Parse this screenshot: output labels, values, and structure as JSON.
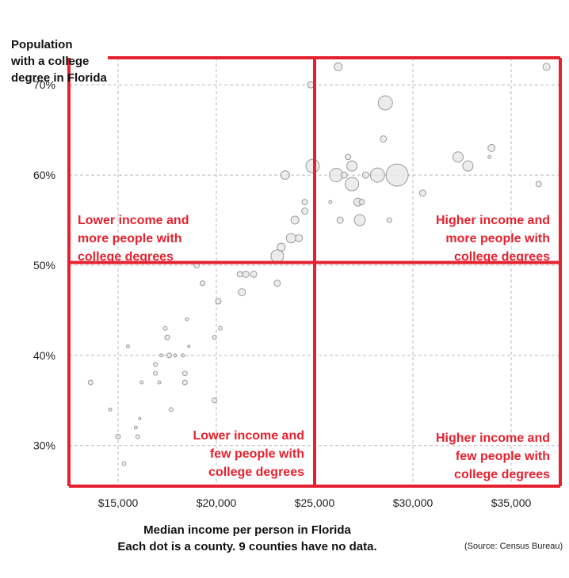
{
  "chart_data": {
    "type": "scatter",
    "title": "",
    "ylabel_lines": [
      "Population",
      "with a college",
      "degree in Florida"
    ],
    "xlabel_lines": [
      "Median income per person in Florida",
      "Each dot is a county. 9 counties have no data."
    ],
    "source": "(Source: Census Bureau)",
    "xlim": [
      12500,
      37500
    ],
    "ylim": [
      25.5,
      73
    ],
    "x_ticks": [
      15000,
      20000,
      25000,
      30000,
      35000
    ],
    "x_tick_labels": [
      "$15,000",
      "$20,000",
      "$25,000",
      "$30,000",
      "$35,000"
    ],
    "y_ticks": [
      30,
      40,
      50,
      60,
      70
    ],
    "y_tick_labels": [
      "30%",
      "40%",
      "50%",
      "60%",
      "70%"
    ],
    "grid": true,
    "dividers": {
      "x": 25000,
      "y": 50.3
    },
    "quadrant_labels": {
      "top_left": [
        "Lower income and",
        "more people with",
        "college degrees"
      ],
      "top_right": [
        "Higher income and",
        "more people with",
        "college degrees"
      ],
      "bottom_left": [
        "Lower income and",
        "few people with",
        "college degrees"
      ],
      "bottom_right": [
        "Higher income and",
        "few people with",
        "college degrees"
      ]
    },
    "points": [
      {
        "x": 13600,
        "y": 37,
        "s": 3
      },
      {
        "x": 14600,
        "y": 34,
        "s": 2
      },
      {
        "x": 15000,
        "y": 31,
        "s": 3
      },
      {
        "x": 15300,
        "y": 28,
        "s": 2.5
      },
      {
        "x": 15500,
        "y": 41,
        "s": 2
      },
      {
        "x": 15900,
        "y": 32,
        "s": 2
      },
      {
        "x": 16000,
        "y": 31,
        "s": 2.5
      },
      {
        "x": 16100,
        "y": 33,
        "s": 1.5
      },
      {
        "x": 16200,
        "y": 37,
        "s": 2
      },
      {
        "x": 16900,
        "y": 38,
        "s": 2.5
      },
      {
        "x": 16900,
        "y": 39,
        "s": 2.5
      },
      {
        "x": 17100,
        "y": 37,
        "s": 2
      },
      {
        "x": 17200,
        "y": 40,
        "s": 2
      },
      {
        "x": 17400,
        "y": 43,
        "s": 2.5
      },
      {
        "x": 17500,
        "y": 42,
        "s": 3
      },
      {
        "x": 17600,
        "y": 40,
        "s": 3
      },
      {
        "x": 17700,
        "y": 34,
        "s": 2.5
      },
      {
        "x": 17900,
        "y": 40,
        "s": 2
      },
      {
        "x": 18300,
        "y": 40,
        "s": 2
      },
      {
        "x": 18400,
        "y": 38,
        "s": 3
      },
      {
        "x": 18400,
        "y": 37,
        "s": 3
      },
      {
        "x": 18500,
        "y": 44,
        "s": 2
      },
      {
        "x": 18600,
        "y": 41,
        "s": 1.5
      },
      {
        "x": 19000,
        "y": 50,
        "s": 3.5
      },
      {
        "x": 19300,
        "y": 48,
        "s": 3
      },
      {
        "x": 19900,
        "y": 42,
        "s": 2.5
      },
      {
        "x": 19900,
        "y": 35,
        "s": 3
      },
      {
        "x": 20100,
        "y": 46,
        "s": 3.5
      },
      {
        "x": 20200,
        "y": 43,
        "s": 2.5
      },
      {
        "x": 21300,
        "y": 47,
        "s": 4.5
      },
      {
        "x": 21200,
        "y": 49,
        "s": 3.5
      },
      {
        "x": 21500,
        "y": 49,
        "s": 4
      },
      {
        "x": 21900,
        "y": 49,
        "s": 4
      },
      {
        "x": 23100,
        "y": 51,
        "s": 8
      },
      {
        "x": 23100,
        "y": 48,
        "s": 4
      },
      {
        "x": 23300,
        "y": 52,
        "s": 5
      },
      {
        "x": 23500,
        "y": 60,
        "s": 5.5
      },
      {
        "x": 23800,
        "y": 53,
        "s": 6
      },
      {
        "x": 24000,
        "y": 55,
        "s": 5
      },
      {
        "x": 24200,
        "y": 53,
        "s": 4.5
      },
      {
        "x": 24500,
        "y": 56,
        "s": 4
      },
      {
        "x": 24500,
        "y": 57,
        "s": 3.5
      },
      {
        "x": 24800,
        "y": 70,
        "s": 4
      },
      {
        "x": 24900,
        "y": 61,
        "s": 8.5
      },
      {
        "x": 25800,
        "y": 57,
        "s": 2
      },
      {
        "x": 26100,
        "y": 60,
        "s": 8.5
      },
      {
        "x": 26200,
        "y": 72,
        "s": 5
      },
      {
        "x": 26300,
        "y": 55,
        "s": 4
      },
      {
        "x": 26500,
        "y": 60,
        "s": 4
      },
      {
        "x": 26700,
        "y": 62,
        "s": 3.5
      },
      {
        "x": 26900,
        "y": 61,
        "s": 6.5
      },
      {
        "x": 26900,
        "y": 59,
        "s": 8.5
      },
      {
        "x": 27200,
        "y": 57,
        "s": 5
      },
      {
        "x": 27300,
        "y": 55,
        "s": 7
      },
      {
        "x": 27400,
        "y": 57,
        "s": 3.5
      },
      {
        "x": 27600,
        "y": 60,
        "s": 4
      },
      {
        "x": 28200,
        "y": 60,
        "s": 9
      },
      {
        "x": 28500,
        "y": 64,
        "s": 4
      },
      {
        "x": 28600,
        "y": 68,
        "s": 9
      },
      {
        "x": 28800,
        "y": 55,
        "s": 3
      },
      {
        "x": 29200,
        "y": 60,
        "s": 14
      },
      {
        "x": 30500,
        "y": 58,
        "s": 4
      },
      {
        "x": 32300,
        "y": 62,
        "s": 6.5
      },
      {
        "x": 32800,
        "y": 61,
        "s": 6.5
      },
      {
        "x": 33900,
        "y": 62,
        "s": 2
      },
      {
        "x": 34000,
        "y": 63,
        "s": 4.5
      },
      {
        "x": 36400,
        "y": 59,
        "s": 3.5
      },
      {
        "x": 36800,
        "y": 72,
        "s": 4.5
      }
    ]
  }
}
